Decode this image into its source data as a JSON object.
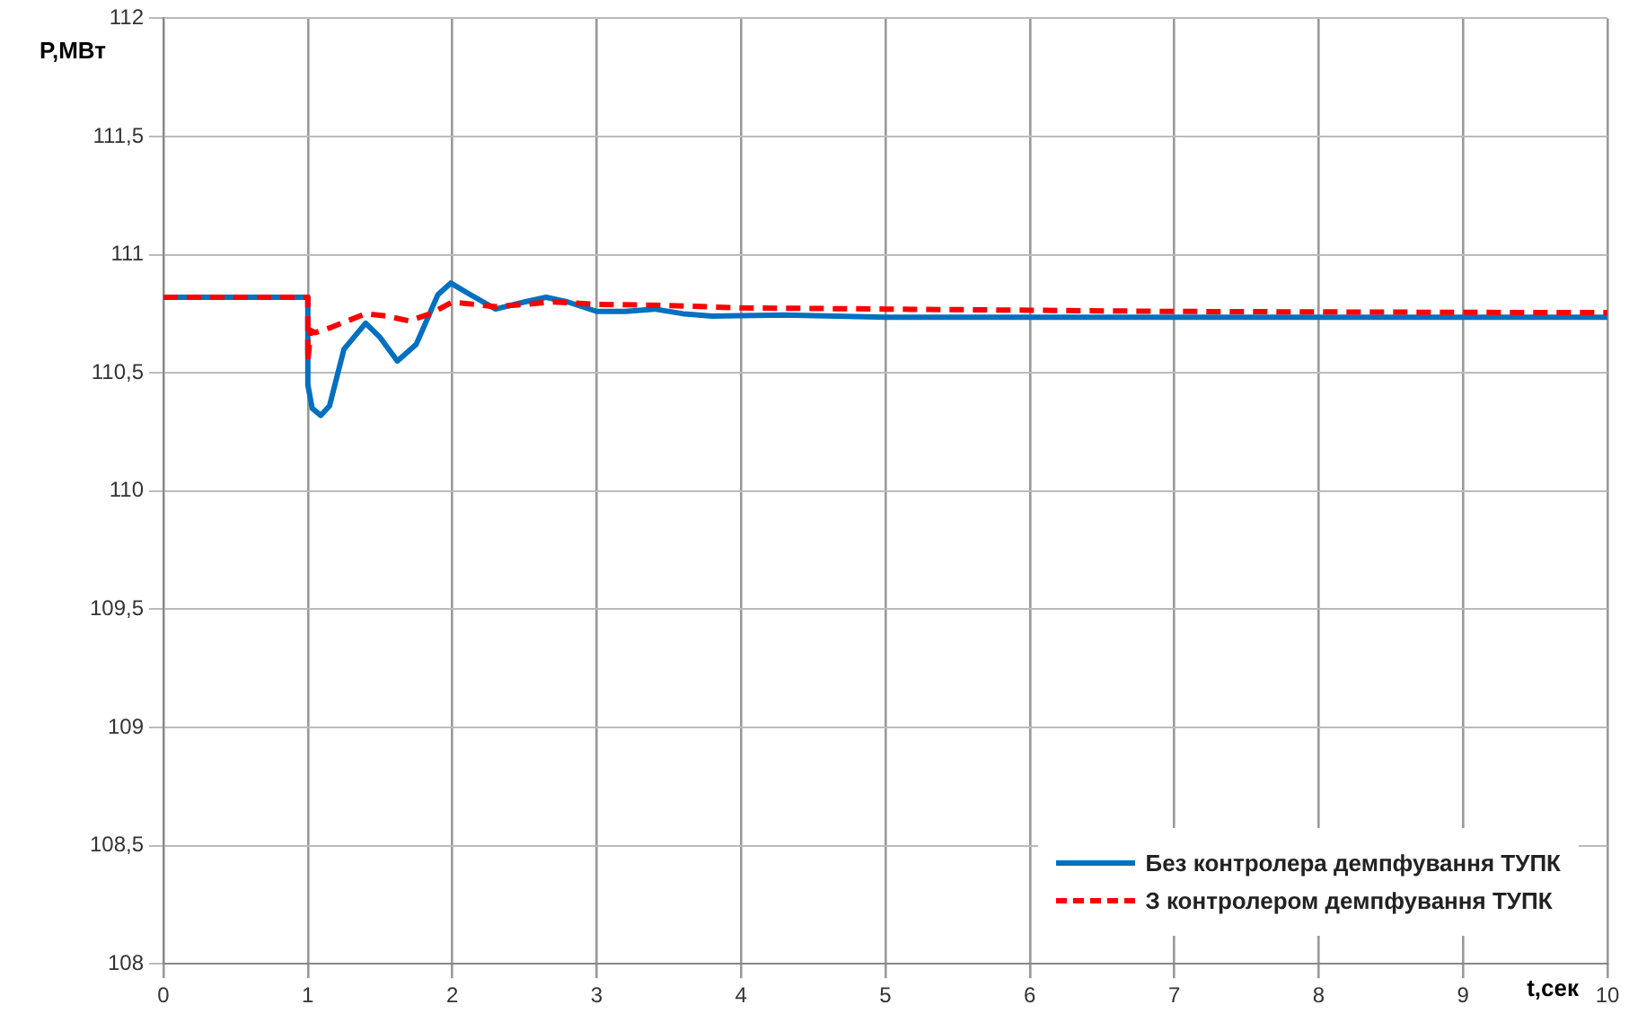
{
  "chart_data": {
    "type": "line",
    "xlabel": "t,сек",
    "ylabel": "P,МВт",
    "xlim": [
      0,
      10
    ],
    "xticks": [
      0,
      1,
      2,
      3,
      4,
      5,
      6,
      7,
      8,
      9,
      10
    ],
    "ylim": [
      108,
      112
    ],
    "yticks": [
      108,
      {
        "value": 108.5,
        "label": "108,5"
      },
      109,
      {
        "value": 109.5,
        "label": "109,5"
      },
      110,
      {
        "value": 110.5,
        "label": "110,5"
      },
      111,
      {
        "value": 111.5,
        "label": "111,5"
      },
      112
    ],
    "grid": true,
    "legend": "bottom right",
    "marker": "none",
    "series": [
      {
        "name": "Без контролера демпфування ТУПК",
        "color": "#0070c0",
        "line_style": "solid",
        "x": [
          0,
          1,
          1,
          1.03,
          1.09,
          1.15,
          1.25,
          1.4,
          1.5,
          1.62,
          1.75,
          1.9,
          1.99,
          2.1,
          2.3,
          2.5,
          2.65,
          2.8,
          3,
          3.2,
          3.4,
          3.6,
          3.8,
          4.3,
          5,
          6,
          7,
          8,
          9,
          10
        ],
        "values": [
          110.82,
          110.82,
          110.45,
          110.35,
          110.32,
          110.36,
          110.6,
          110.71,
          110.65,
          110.55,
          110.62,
          110.83,
          110.88,
          110.84,
          110.77,
          110.8,
          110.82,
          110.8,
          110.76,
          110.76,
          110.77,
          110.75,
          110.74,
          110.745,
          110.735,
          110.735,
          110.735,
          110.735,
          110.735,
          110.735
        ]
      },
      {
        "name": "З контролером демпфування ТУПК",
        "color": "#ff0000",
        "line_style": "dashed",
        "x": [
          0,
          1,
          1,
          1.02,
          1.05,
          1.15,
          1.4,
          1.55,
          1.7,
          1.85,
          2.0,
          2.15,
          2.3,
          2.5,
          2.7,
          3,
          3.5,
          4,
          5,
          6,
          7,
          8,
          9,
          10
        ],
        "values": [
          110.82,
          110.82,
          110.55,
          110.68,
          110.67,
          110.69,
          110.75,
          110.74,
          110.72,
          110.75,
          110.8,
          110.79,
          110.78,
          110.79,
          110.8,
          110.79,
          110.785,
          110.775,
          110.77,
          110.765,
          110.76,
          110.758,
          110.756,
          110.755
        ]
      }
    ]
  }
}
